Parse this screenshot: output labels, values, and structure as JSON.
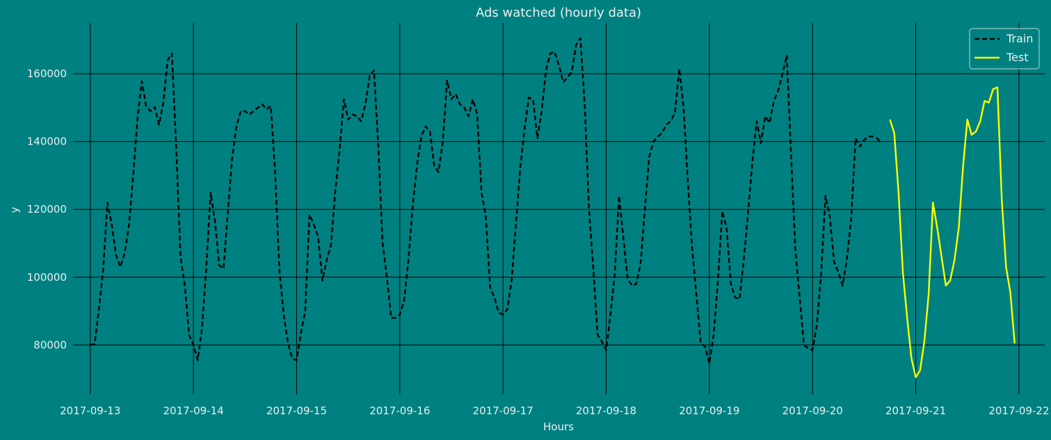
{
  "colors": {
    "background": "#008080",
    "grid": "#000000",
    "train": "#000000",
    "test": "#ffff00",
    "text": "#e8f0f0"
  },
  "chart_data": {
    "type": "line",
    "title": "Ads watched (hourly data)",
    "xlabel": "Hours",
    "ylabel": "y",
    "grid": true,
    "legend_position": "top-right",
    "xlim": [
      "2017-09-12T20:00",
      "2017-09-22T06:00"
    ],
    "ylim": [
      65500,
      175000
    ],
    "x_ticks": [
      "2017-09-13",
      "2017-09-14",
      "2017-09-15",
      "2017-09-16",
      "2017-09-17",
      "2017-09-18",
      "2017-09-19",
      "2017-09-20",
      "2017-09-21",
      "2017-09-22"
    ],
    "y_ticks": [
      80000,
      100000,
      120000,
      140000,
      160000
    ],
    "y_tick_labels": [
      "80000",
      "100000",
      "120000",
      "140000",
      "160000"
    ],
    "series": [
      {
        "name": "Train",
        "style": "dashed",
        "start": "2017-09-13T00:00",
        "step_hours": 1,
        "values": [
          80100,
          80200,
          90200,
          102000,
          122000,
          115500,
          106500,
          103000,
          107000,
          115200,
          130000,
          147000,
          157800,
          150500,
          149000,
          150200,
          145000,
          151500,
          164000,
          166000,
          138000,
          106000,
          97500,
          83000,
          80000,
          75500,
          85000,
          103000,
          125000,
          116500,
          103500,
          102500,
          119000,
          135000,
          144500,
          149000,
          149000,
          148000,
          149000,
          150000,
          151000,
          149500,
          150500,
          131000,
          102000,
          89000,
          80500,
          76000,
          75500,
          83500,
          90000,
          118500,
          115500,
          112000,
          99000,
          105000,
          109500,
          125500,
          137500,
          152500,
          146500,
          148000,
          147500,
          146000,
          151000,
          159500,
          161000,
          138500,
          110000,
          100000,
          88000,
          88000,
          89000,
          93000,
          105000,
          121000,
          133000,
          141500,
          144500,
          143000,
          133000,
          131000,
          140000,
          158000,
          152500,
          154000,
          151000,
          150000,
          147500,
          152500,
          148000,
          125000,
          118000,
          97000,
          94000,
          89500,
          89000,
          90500,
          99000,
          115500,
          132000,
          143500,
          153000,
          152500,
          141000,
          149000,
          161000,
          166000,
          166500,
          162500,
          157500,
          159000,
          160500,
          168500,
          170500,
          151000,
          120000,
          102500,
          83000,
          81000,
          78500,
          89000,
          101000,
          124000,
          111500,
          99500,
          97500,
          98000,
          104000,
          120000,
          135500,
          140000,
          141500,
          142500,
          145000,
          146000,
          148500,
          161500,
          150000,
          128000,
          108500,
          94500,
          80500,
          79500,
          74500,
          83000,
          99000,
          119500,
          114500,
          98000,
          94000,
          93500,
          105000,
          119000,
          134000,
          146000,
          139500,
          147500,
          145500,
          152000,
          155000,
          160000,
          165500,
          136000,
          108000,
          94000,
          80000,
          79000,
          78500,
          86000,
          101000,
          124000,
          118000,
          104500,
          101500,
          97500,
          105500,
          117500,
          141000,
          138500,
          140500,
          141500,
          141500,
          141000,
          139500
        ]
      },
      {
        "name": "Test",
        "style": "solid",
        "start": "2017-09-20T18:00",
        "step_hours": 1,
        "values": [
          146500,
          142500,
          125000,
          101500,
          88000,
          76000,
          70500,
          72500,
          81000,
          95000,
          122000,
          114500,
          106000,
          97500,
          99000,
          105000,
          114500,
          132500,
          146500,
          142000,
          143000,
          146000,
          152000,
          151500,
          155500,
          156000,
          123000,
          103000,
          95500,
          80500
        ]
      }
    ]
  }
}
